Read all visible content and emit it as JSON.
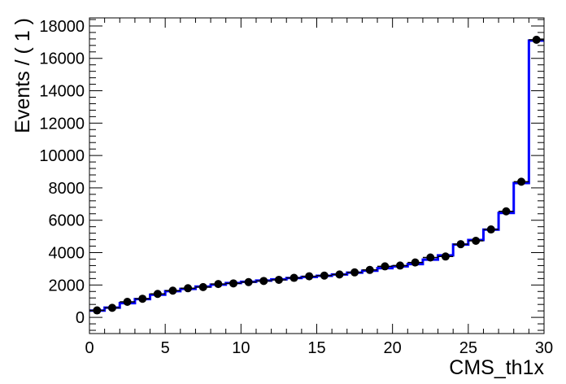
{
  "chart_data": {
    "type": "histogram",
    "title": "",
    "xlabel": "CMS_th1x",
    "ylabel": "Events / ( 1 )",
    "xlim": [
      0,
      30
    ],
    "ylim": [
      -1000,
      18500
    ],
    "x_ticks": [
      0,
      5,
      10,
      15,
      20,
      25,
      30
    ],
    "y_ticks": [
      0,
      2000,
      4000,
      6000,
      8000,
      10000,
      12000,
      14000,
      16000,
      18000
    ],
    "grid": false,
    "legend": "none",
    "colors": {
      "model": "#0000ff",
      "data": "#000000",
      "axes": "#000000"
    },
    "bin_edges": [
      0,
      1,
      2,
      3,
      4,
      5,
      6,
      7,
      8,
      9,
      10,
      11,
      12,
      13,
      14,
      15,
      16,
      17,
      18,
      19,
      20,
      21,
      22,
      23,
      24,
      25,
      26,
      27,
      28,
      29,
      30
    ],
    "series": [
      {
        "kind": "step",
        "values": [
          420,
          600,
          880,
          1130,
          1400,
          1620,
          1760,
          1900,
          2020,
          2120,
          2200,
          2270,
          2350,
          2430,
          2500,
          2570,
          2650,
          2760,
          2880,
          3040,
          3150,
          3290,
          3570,
          3830,
          4500,
          4780,
          5420,
          6450,
          8300,
          17100
        ]
      },
      {
        "kind": "points",
        "x": [
          0.5,
          1.5,
          2.5,
          3.5,
          4.5,
          5.5,
          6.5,
          7.5,
          8.5,
          9.5,
          10.5,
          11.5,
          12.5,
          13.5,
          14.5,
          15.5,
          16.5,
          17.5,
          18.5,
          19.5,
          20.5,
          21.5,
          22.5,
          23.5,
          24.5,
          25.5,
          26.5,
          27.5,
          28.5,
          29.5
        ],
        "y": [
          430,
          590,
          960,
          1150,
          1450,
          1650,
          1800,
          1870,
          2060,
          2100,
          2180,
          2250,
          2320,
          2440,
          2540,
          2580,
          2650,
          2780,
          2930,
          3150,
          3200,
          3390,
          3700,
          3760,
          4520,
          4730,
          5430,
          6550,
          8380,
          17150
        ]
      }
    ]
  }
}
